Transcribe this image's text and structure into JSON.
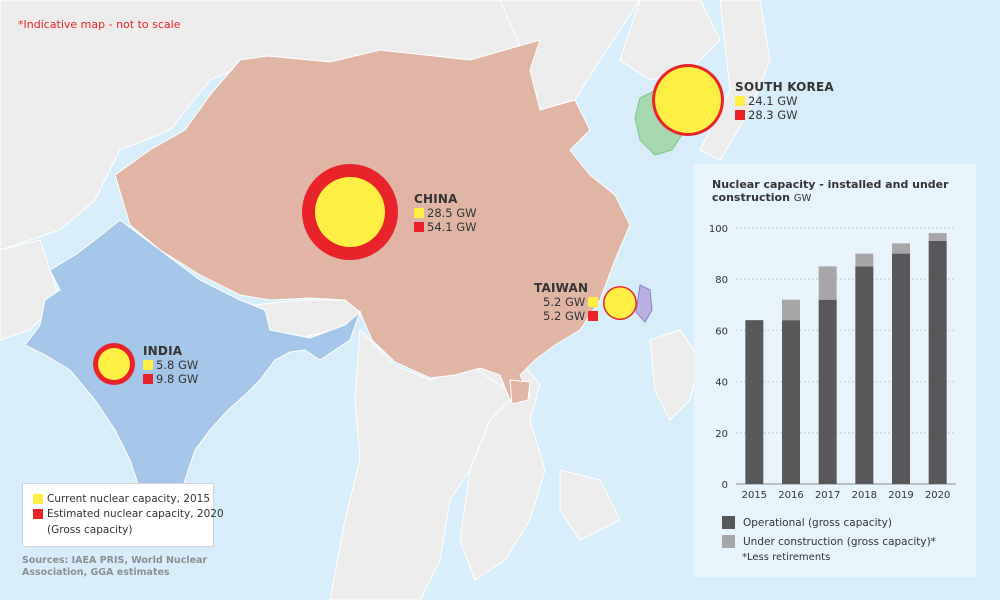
{
  "note": "*Indicative map - not to scale",
  "countries": [
    {
      "name": "CHINA",
      "current": "28.5 GW",
      "estimated": "54.1 GW"
    },
    {
      "name": "SOUTH KOREA",
      "current": "24.1 GW",
      "estimated": "28.3 GW"
    },
    {
      "name": "TAIWAN",
      "current": "5.2 GW",
      "estimated": "5.2 GW"
    },
    {
      "name": "INDIA",
      "current": "5.8 GW",
      "estimated": "9.8 GW"
    }
  ],
  "legend": {
    "current_label": "Current nuclear capacity, 2015",
    "estimated_label": "Estimated nuclear capacity, 2020",
    "gross_note": "(Gross capacity)"
  },
  "sources": "Sources: IAEA PRIS, World Nuclear Association, GGA estimates",
  "colors": {
    "current": "#ffee44",
    "estimated": "#e8242a",
    "china": "#e0b5a4",
    "india": "#a4c6e8",
    "korea": "#a6d8ad",
    "taiwan": "#b7b0e0",
    "operational": "#58585a",
    "under_construction": "#a7a7a9"
  },
  "chart_data": {
    "type": "bar",
    "title": "Nuclear capacity - installed and under construction",
    "unit": "GW",
    "categories": [
      "2015",
      "2016",
      "2017",
      "2018",
      "2019",
      "2020"
    ],
    "series": [
      {
        "name": "Operational (gross capacity)",
        "values": [
          64,
          64,
          72,
          85,
          90,
          95
        ]
      },
      {
        "name": "Under construction (gross capacity)*",
        "values": [
          0,
          8,
          13,
          5,
          4,
          3
        ]
      }
    ],
    "ylim": [
      0,
      100
    ],
    "yticks": [
      0,
      20,
      40,
      60,
      80,
      100
    ],
    "stacked": true,
    "grid": true,
    "footnote": "*Less retirements"
  }
}
